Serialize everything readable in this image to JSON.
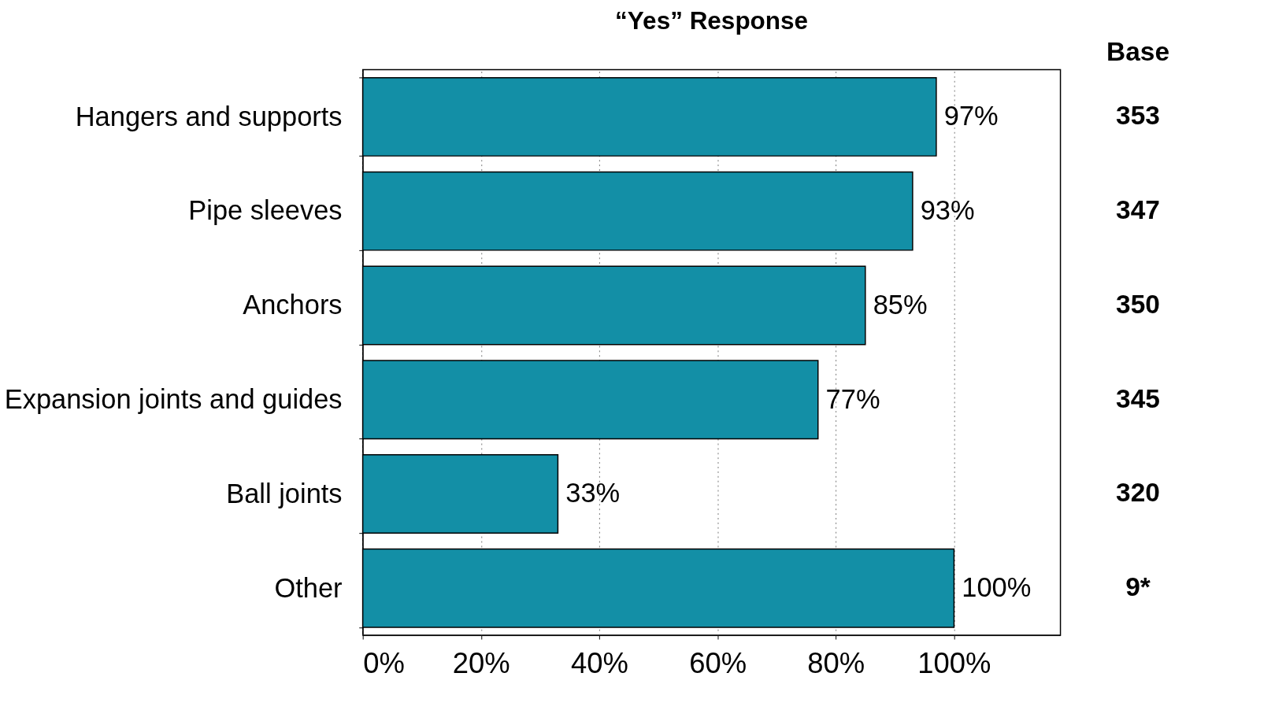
{
  "chart_data": {
    "type": "bar",
    "orientation": "horizontal",
    "title": "“Yes” Response",
    "categories": [
      "Hangers and supports",
      "Pipe sleeves",
      "Anchors",
      "Expansion joints and guides",
      "Ball joints",
      "Other"
    ],
    "values": [
      97,
      93,
      85,
      77,
      33,
      100
    ],
    "value_labels": [
      "97%",
      "93%",
      "85%",
      "77%",
      "33%",
      "100%"
    ],
    "color": "#138fa6",
    "xlim": [
      0,
      118
    ],
    "xticks": [
      {
        "value": 0,
        "label": "0%"
      },
      {
        "value": 20,
        "label": "20%"
      },
      {
        "value": 40,
        "label": "40%"
      },
      {
        "value": 60,
        "label": "60%"
      },
      {
        "value": 80,
        "label": "80%"
      },
      {
        "value": 100,
        "label": "100%"
      }
    ],
    "grid": "x",
    "annotations": [
      "Base",
      "353",
      "347",
      "350",
      "345",
      "320",
      "9*"
    ]
  }
}
